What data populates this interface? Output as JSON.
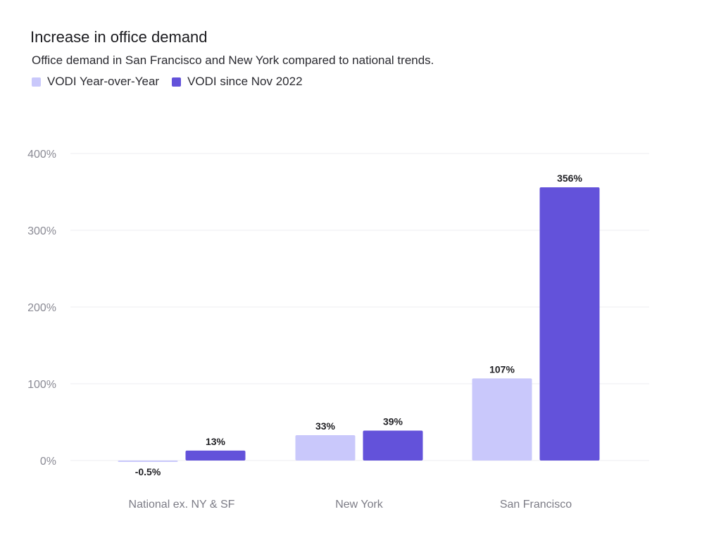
{
  "header": {
    "title": "Increase in office demand",
    "subtitle": "Office demand in San Francisco and New York compared to national trends."
  },
  "chart_data": {
    "type": "bar",
    "title": "Increase in office demand",
    "subtitle": "Office demand in San Francisco and New York compared to national trends.",
    "categories": [
      "National ex. NY & SF",
      "New York",
      "San Francisco"
    ],
    "series": [
      {
        "name": "VODI Year-over-Year",
        "color": "#c9c8fb",
        "values": [
          -0.5,
          33,
          107
        ],
        "labels": [
          "-0.5%",
          "33%",
          "107%"
        ]
      },
      {
        "name": "VODI since Nov 2022",
        "color": "#6352da",
        "values": [
          13,
          39,
          356
        ],
        "labels": [
          "13%",
          "39%",
          "356%"
        ]
      }
    ],
    "y_ticks": [
      0,
      100,
      200,
      300,
      400
    ],
    "y_tick_labels": [
      "0%",
      "100%",
      "200%",
      "300%",
      "400%"
    ],
    "ylim": [
      0,
      400
    ],
    "grid": true,
    "legend_position": "top-left"
  }
}
